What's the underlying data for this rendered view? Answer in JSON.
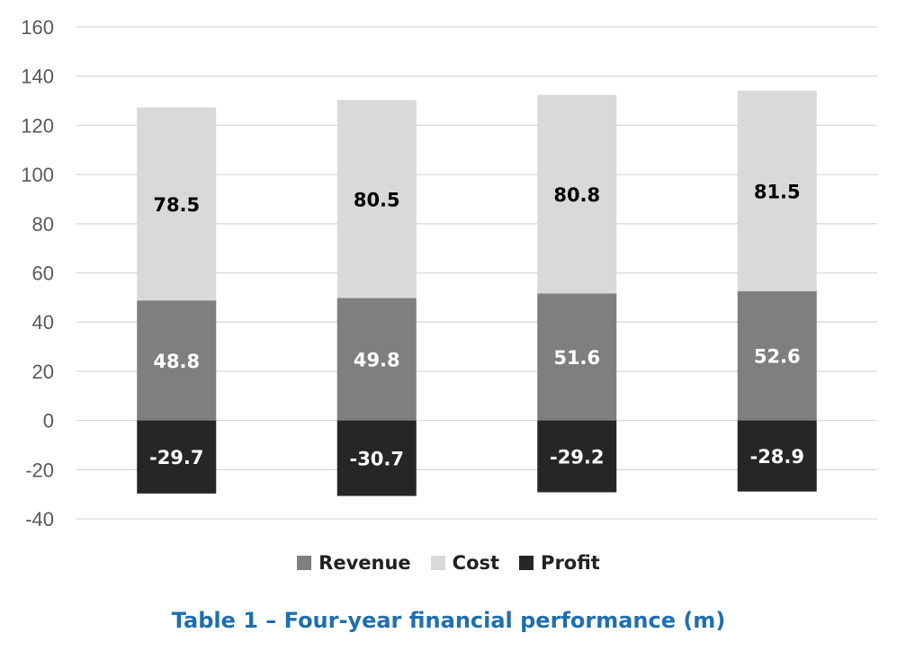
{
  "chart_data": {
    "type": "bar",
    "stacked": true,
    "categories": [
      "",
      "",
      "",
      ""
    ],
    "series": [
      {
        "name": "Revenue",
        "values": [
          48.8,
          49.8,
          51.6,
          52.6
        ],
        "color": "#7f7f7f",
        "label_color": "#ffffff"
      },
      {
        "name": "Cost",
        "values": [
          78.5,
          80.5,
          80.8,
          81.5
        ],
        "color": "#d9d9d9",
        "label_color": "#000000"
      },
      {
        "name": "Profit",
        "values": [
          -29.7,
          -30.7,
          -29.2,
          -28.9
        ],
        "color": "#262626",
        "label_color": "#ffffff"
      }
    ],
    "ylim": [
      -40,
      160
    ],
    "yticks": [
      "160",
      "140",
      "120",
      "100",
      "80",
      "60",
      "40",
      "20",
      "0",
      "-20",
      "-40"
    ],
    "grid": true,
    "legend": "bottom",
    "title": ""
  },
  "legend": [
    {
      "label": "Revenue",
      "color": "#7f7f7f"
    },
    {
      "label": "Cost",
      "color": "#d9d9d9"
    },
    {
      "label": "Profit",
      "color": "#262626"
    }
  ],
  "caption": "Table 1 – Four-year financial performance (m)"
}
